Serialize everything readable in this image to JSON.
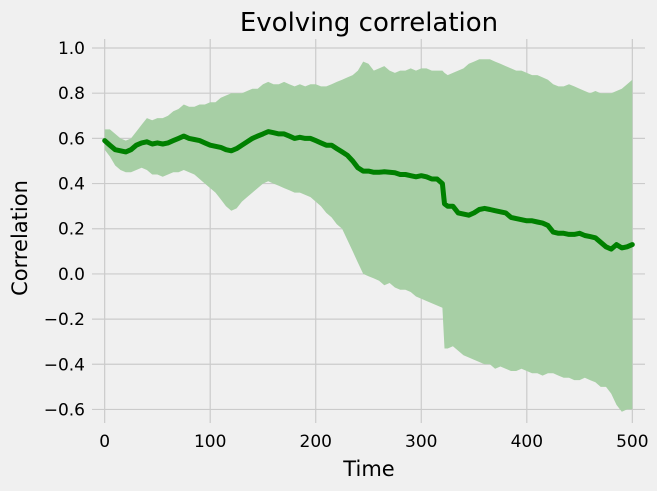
{
  "chart_data": {
    "type": "line",
    "title": "Evolving correlation",
    "xlabel": "Time",
    "ylabel": "Correlation",
    "xlim": [
      -12,
      512
    ],
    "ylim": [
      -0.66,
      1.04
    ],
    "xticks": [
      0,
      100,
      200,
      300,
      400,
      500
    ],
    "xtick_labels": [
      "0",
      "100",
      "200",
      "300",
      "400",
      "500"
    ],
    "yticks": [
      1.0,
      0.8,
      0.6,
      0.4,
      0.2,
      0.0,
      -0.2,
      -0.4,
      -0.6
    ],
    "ytick_labels": [
      "1.0",
      "0.8",
      "0.6",
      "0.4",
      "0.2",
      "0.0",
      "−0.2",
      "−0.4",
      "−0.6"
    ],
    "grid": true,
    "colors": {
      "line": "#008000",
      "band": "#a7cfa5",
      "background": "#f0f0f0",
      "grid": "#cbcbcb"
    },
    "series": [
      {
        "x": [
          0,
          5,
          10,
          15,
          20,
          25,
          30,
          35,
          40,
          45,
          50,
          55,
          60,
          65,
          70,
          75,
          80,
          85,
          90,
          95,
          100,
          105,
          110,
          115,
          120,
          125,
          130,
          135,
          140,
          145,
          150,
          155,
          160,
          165,
          170,
          175,
          180,
          185,
          190,
          195,
          200,
          205,
          210,
          215,
          220,
          225,
          230,
          235,
          240,
          245,
          250,
          255,
          260,
          265,
          270,
          275,
          280,
          285,
          290,
          295,
          300,
          305,
          310,
          315,
          320,
          322,
          325,
          330,
          335,
          340,
          345,
          350,
          355,
          360,
          365,
          370,
          375,
          380,
          385,
          390,
          395,
          400,
          405,
          410,
          415,
          420,
          425,
          430,
          435,
          440,
          445,
          450,
          455,
          460,
          465,
          470,
          475,
          480,
          485,
          490,
          495,
          500
        ],
        "values": [
          0.59,
          0.57,
          0.55,
          0.545,
          0.54,
          0.55,
          0.57,
          0.58,
          0.585,
          0.575,
          0.58,
          0.575,
          0.58,
          0.59,
          0.6,
          0.61,
          0.6,
          0.595,
          0.59,
          0.58,
          0.57,
          0.565,
          0.56,
          0.55,
          0.545,
          0.555,
          0.57,
          0.585,
          0.6,
          0.61,
          0.62,
          0.63,
          0.625,
          0.62,
          0.62,
          0.61,
          0.6,
          0.605,
          0.6,
          0.6,
          0.59,
          0.58,
          0.57,
          0.57,
          0.555,
          0.54,
          0.525,
          0.5,
          0.47,
          0.455,
          0.455,
          0.45,
          0.45,
          0.452,
          0.45,
          0.448,
          0.44,
          0.44,
          0.435,
          0.43,
          0.435,
          0.43,
          0.42,
          0.42,
          0.4,
          0.31,
          0.3,
          0.3,
          0.27,
          0.265,
          0.26,
          0.27,
          0.285,
          0.29,
          0.285,
          0.28,
          0.275,
          0.27,
          0.25,
          0.245,
          0.24,
          0.235,
          0.235,
          0.23,
          0.225,
          0.215,
          0.185,
          0.18,
          0.18,
          0.175,
          0.175,
          0.18,
          0.17,
          0.165,
          0.16,
          0.14,
          0.12,
          0.11,
          0.13,
          0.115,
          0.12,
          0.13
        ]
      }
    ],
    "band": {
      "upper": [
        0.64,
        0.64,
        0.62,
        0.6,
        0.59,
        0.6,
        0.63,
        0.66,
        0.69,
        0.68,
        0.69,
        0.69,
        0.7,
        0.72,
        0.73,
        0.75,
        0.74,
        0.74,
        0.75,
        0.75,
        0.76,
        0.76,
        0.78,
        0.79,
        0.8,
        0.8,
        0.8,
        0.81,
        0.82,
        0.82,
        0.84,
        0.85,
        0.84,
        0.84,
        0.85,
        0.84,
        0.83,
        0.84,
        0.83,
        0.84,
        0.84,
        0.83,
        0.83,
        0.84,
        0.85,
        0.86,
        0.87,
        0.88,
        0.9,
        0.94,
        0.93,
        0.9,
        0.91,
        0.92,
        0.9,
        0.89,
        0.9,
        0.9,
        0.91,
        0.9,
        0.91,
        0.91,
        0.9,
        0.9,
        0.9,
        0.89,
        0.88,
        0.89,
        0.9,
        0.91,
        0.93,
        0.94,
        0.95,
        0.95,
        0.95,
        0.94,
        0.93,
        0.92,
        0.91,
        0.9,
        0.9,
        0.89,
        0.88,
        0.88,
        0.87,
        0.86,
        0.84,
        0.83,
        0.83,
        0.84,
        0.83,
        0.82,
        0.81,
        0.8,
        0.81,
        0.8,
        0.8,
        0.8,
        0.81,
        0.82,
        0.84,
        0.86
      ],
      "lower": [
        0.55,
        0.52,
        0.48,
        0.46,
        0.45,
        0.45,
        0.46,
        0.47,
        0.46,
        0.44,
        0.44,
        0.43,
        0.44,
        0.45,
        0.45,
        0.46,
        0.45,
        0.44,
        0.42,
        0.4,
        0.38,
        0.36,
        0.33,
        0.3,
        0.28,
        0.29,
        0.32,
        0.34,
        0.36,
        0.38,
        0.4,
        0.41,
        0.4,
        0.39,
        0.38,
        0.37,
        0.36,
        0.36,
        0.35,
        0.34,
        0.32,
        0.3,
        0.27,
        0.25,
        0.22,
        0.2,
        0.15,
        0.1,
        0.05,
        0.0,
        -0.01,
        -0.02,
        -0.03,
        -0.05,
        -0.04,
        -0.06,
        -0.07,
        -0.07,
        -0.08,
        -0.1,
        -0.11,
        -0.12,
        -0.13,
        -0.14,
        -0.15,
        -0.33,
        -0.33,
        -0.32,
        -0.34,
        -0.36,
        -0.37,
        -0.38,
        -0.39,
        -0.4,
        -0.4,
        -0.42,
        -0.41,
        -0.42,
        -0.43,
        -0.43,
        -0.42,
        -0.43,
        -0.44,
        -0.44,
        -0.45,
        -0.44,
        -0.44,
        -0.45,
        -0.46,
        -0.46,
        -0.47,
        -0.47,
        -0.46,
        -0.47,
        -0.48,
        -0.5,
        -0.5,
        -0.53,
        -0.58,
        -0.61,
        -0.6,
        -0.6
      ]
    }
  }
}
